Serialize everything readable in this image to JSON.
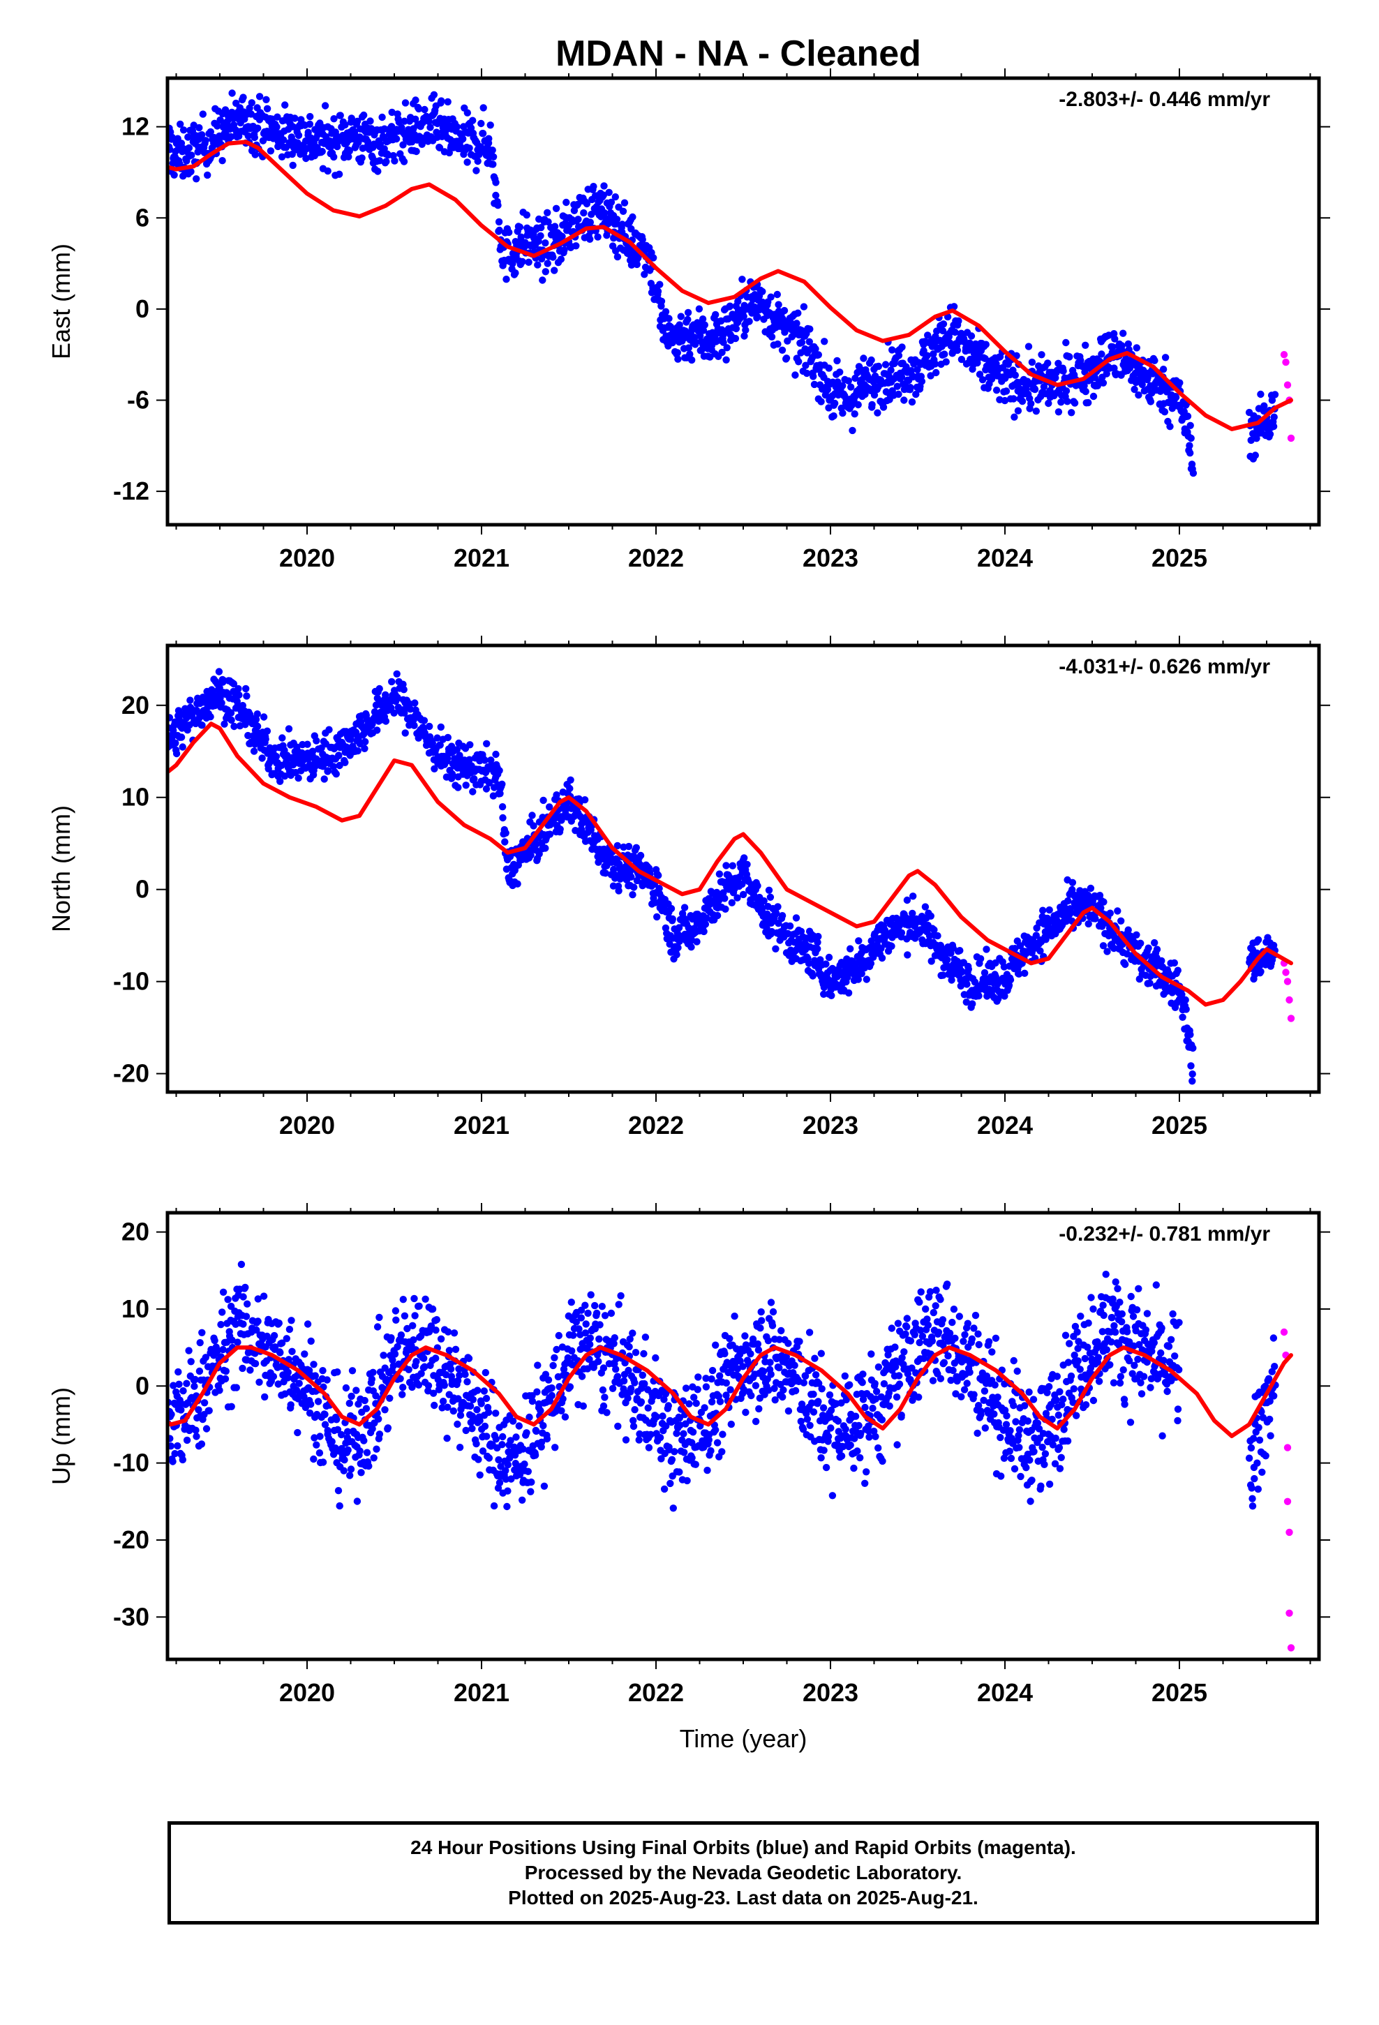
{
  "title": "MDAN  - NA - Cleaned",
  "chart_data": [
    {
      "type": "scatter",
      "ylabel": "East (mm)",
      "xlabel": "",
      "rate_label": "-2.803+/- 0.446 mm/yr",
      "xlim": [
        2019.2,
        2025.8
      ],
      "ylim": [
        -14.2,
        15.2
      ],
      "xticks": [
        "2020",
        "2021",
        "2022",
        "2023",
        "2024",
        "2025"
      ],
      "yticks": [
        "12",
        "6",
        "0",
        "-6",
        "-12"
      ],
      "ytick_values": [
        12,
        6,
        0,
        -6,
        -12
      ],
      "series": [
        {
          "name": "Final Orbits",
          "color": "#0000ff",
          "kind": "points",
          "x": [
            2019.2,
            2019.25,
            2019.35,
            2019.45,
            2019.55,
            2019.65,
            2019.75,
            2019.85,
            2019.95,
            2020.05,
            2020.15,
            2020.25,
            2020.35,
            2020.45,
            2020.55,
            2020.65,
            2020.75,
            2020.85,
            2020.95,
            2021.05,
            2021.12,
            2021.15,
            2021.25,
            2021.35,
            2021.45,
            2021.55,
            2021.65,
            2021.75,
            2021.85,
            2021.95,
            2022.05,
            2022.1,
            2022.2,
            2022.3,
            2022.4,
            2022.5,
            2022.6,
            2022.7,
            2022.8,
            2022.9,
            2023.0,
            2023.1,
            2023.2,
            2023.3,
            2023.4,
            2023.5,
            2023.6,
            2023.7,
            2023.8,
            2023.9,
            2024.0,
            2024.1,
            2024.2,
            2024.3,
            2024.4,
            2024.5,
            2024.6,
            2024.7,
            2024.8,
            2024.9,
            2025.0,
            2025.05,
            2025.08,
            2025.4,
            2025.5,
            2025.55
          ],
          "y": [
            11,
            10,
            10.5,
            11,
            12,
            12.5,
            12,
            11.5,
            11.5,
            11,
            11,
            11.5,
            11,
            11,
            11.5,
            12,
            12,
            11,
            11,
            11,
            4,
            3.5,
            4.5,
            4,
            4.5,
            6,
            6.5,
            6,
            4.5,
            4,
            -1.5,
            -2,
            -1.5,
            -2,
            -1.5,
            0,
            0.5,
            -1,
            -2,
            -3,
            -5.5,
            -6,
            -5,
            -4.5,
            -4,
            -4,
            -2.5,
            -1.5,
            -3,
            -4,
            -4.5,
            -5,
            -5,
            -5,
            -4.5,
            -4,
            -3,
            -3.5,
            -4.5,
            -5,
            -6,
            -8,
            -11,
            -8,
            -7.5,
            -6
          ]
        },
        {
          "name": "Rapid Orbits",
          "color": "#ff00ff",
          "kind": "points",
          "x": [
            2025.6,
            2025.61,
            2025.62,
            2025.63,
            2025.64
          ],
          "y": [
            -3,
            -3.5,
            -5,
            -6,
            -8.5
          ]
        },
        {
          "name": "Model",
          "color": "#ff0000",
          "kind": "line",
          "x": [
            2019.15,
            2019.25,
            2019.35,
            2019.45,
            2019.55,
            2019.65,
            2019.72,
            2019.85,
            2020.0,
            2020.15,
            2020.3,
            2020.45,
            2020.6,
            2020.7,
            2020.85,
            2021.0,
            2021.15,
            2021.3,
            2021.45,
            2021.6,
            2021.7,
            2021.85,
            2022.0,
            2022.15,
            2022.3,
            2022.45,
            2022.6,
            2022.7,
            2022.85,
            2023.0,
            2023.15,
            2023.3,
            2023.45,
            2023.6,
            2023.7,
            2023.85,
            2024.0,
            2024.15,
            2024.3,
            2024.45,
            2024.6,
            2024.7,
            2024.85,
            2025.0,
            2025.15,
            2025.3,
            2025.45,
            2025.55,
            2025.64
          ],
          "y": [
            9.5,
            9.2,
            9.4,
            10.2,
            10.9,
            11,
            10.6,
            9.2,
            7.6,
            6.5,
            6.1,
            6.8,
            7.9,
            8.2,
            7.2,
            5.5,
            4.1,
            3.5,
            4.3,
            5.3,
            5.4,
            4.4,
            2.7,
            1.2,
            0.4,
            0.8,
            2.0,
            2.5,
            1.8,
            0.1,
            -1.4,
            -2.1,
            -1.7,
            -0.5,
            -0.1,
            -1.1,
            -2.8,
            -4.3,
            -5,
            -4.6,
            -3.3,
            -2.9,
            -3.8,
            -5.5,
            -7,
            -7.9,
            -7.5,
            -6.5,
            -6
          ]
        }
      ]
    },
    {
      "type": "scatter",
      "ylabel": "North (mm)",
      "xlabel": "",
      "rate_label": "-4.031+/- 0.626 mm/yr",
      "xlim": [
        2019.2,
        2025.8
      ],
      "ylim": [
        -22,
        26.5
      ],
      "xticks": [
        "2020",
        "2021",
        "2022",
        "2023",
        "2024",
        "2025"
      ],
      "yticks": [
        "20",
        "10",
        "0",
        "-10",
        "-20"
      ],
      "ytick_values": [
        20,
        10,
        0,
        -10,
        -20
      ],
      "series": [
        {
          "name": "Final Orbits",
          "color": "#0000ff",
          "kind": "points",
          "x": [
            2019.2,
            2019.3,
            2019.4,
            2019.5,
            2019.6,
            2019.7,
            2019.8,
            2019.9,
            2020.0,
            2020.1,
            2020.2,
            2020.3,
            2020.4,
            2020.5,
            2020.6,
            2020.7,
            2020.8,
            2020.9,
            2021.0,
            2021.1,
            2021.15,
            2021.25,
            2021.35,
            2021.45,
            2021.5,
            2021.6,
            2021.7,
            2021.8,
            2021.9,
            2022.0,
            2022.1,
            2022.2,
            2022.3,
            2022.4,
            2022.5,
            2022.6,
            2022.7,
            2022.8,
            2022.9,
            2023.0,
            2023.1,
            2023.2,
            2023.3,
            2023.4,
            2023.5,
            2023.6,
            2023.7,
            2023.8,
            2023.9,
            2024.0,
            2024.1,
            2024.2,
            2024.3,
            2024.4,
            2024.5,
            2024.6,
            2024.7,
            2024.8,
            2024.9,
            2025.0,
            2025.05,
            2025.08,
            2025.4,
            2025.5,
            2025.55
          ],
          "y": [
            16,
            18,
            20,
            21.5,
            20,
            17,
            14.5,
            14,
            14,
            14.5,
            15.5,
            17,
            19,
            21,
            19,
            16,
            14,
            13.5,
            13,
            12.5,
            2,
            4,
            6,
            8.5,
            9.5,
            7,
            4,
            2.5,
            2,
            0.5,
            -5,
            -4.5,
            -2,
            0,
            1.5,
            -2,
            -4,
            -6,
            -7,
            -10,
            -9,
            -7.5,
            -5,
            -4,
            -3.5,
            -6,
            -8,
            -10,
            -10,
            -9.5,
            -7,
            -5,
            -3.5,
            -2,
            -2,
            -4,
            -6,
            -8,
            -9,
            -11,
            -15,
            -20,
            -8,
            -7,
            -7
          ]
        },
        {
          "name": "Rapid Orbits",
          "color": "#ff00ff",
          "kind": "points",
          "x": [
            2025.6,
            2025.61,
            2025.62,
            2025.63,
            2025.64
          ],
          "y": [
            -8,
            -9,
            -10,
            -12,
            -14
          ]
        },
        {
          "name": "Model",
          "color": "#ff0000",
          "kind": "line",
          "x": [
            2019.15,
            2019.25,
            2019.35,
            2019.45,
            2019.5,
            2019.6,
            2019.75,
            2019.9,
            2020.05,
            2020.2,
            2020.3,
            2020.4,
            2020.5,
            2020.6,
            2020.75,
            2020.9,
            2021.05,
            2021.15,
            2021.25,
            2021.35,
            2021.45,
            2021.5,
            2021.6,
            2021.75,
            2021.9,
            2022.05,
            2022.15,
            2022.25,
            2022.35,
            2022.45,
            2022.5,
            2022.6,
            2022.75,
            2022.9,
            2023.05,
            2023.15,
            2023.25,
            2023.35,
            2023.45,
            2023.5,
            2023.6,
            2023.75,
            2023.9,
            2024.05,
            2024.15,
            2024.25,
            2024.35,
            2024.45,
            2024.5,
            2024.6,
            2024.75,
            2024.9,
            2025.05,
            2025.15,
            2025.25,
            2025.35,
            2025.45,
            2025.5,
            2025.64
          ],
          "y": [
            12,
            13.5,
            16,
            18,
            17.5,
            14.5,
            11.5,
            10,
            9,
            7.5,
            8,
            11,
            14,
            13.5,
            9.5,
            7,
            5.5,
            4,
            4.5,
            7,
            9.5,
            10,
            8.5,
            4.5,
            2,
            0.5,
            -0.5,
            0,
            3,
            5.5,
            6,
            4,
            0,
            -1.5,
            -3,
            -4,
            -3.5,
            -1,
            1.5,
            2,
            0.5,
            -3,
            -5.5,
            -7,
            -8,
            -7.5,
            -5,
            -2.5,
            -2,
            -3.5,
            -7,
            -9.5,
            -11,
            -12.5,
            -12,
            -10,
            -7.5,
            -6.5,
            -8
          ]
        }
      ]
    },
    {
      "type": "scatter",
      "ylabel": "Up (mm)",
      "xlabel": "Time (year)",
      "rate_label": "-0.232+/- 0.781 mm/yr",
      "xlim": [
        2019.2,
        2025.8
      ],
      "ylim": [
        -35.5,
        22.5
      ],
      "xticks": [
        "2020",
        "2021",
        "2022",
        "2023",
        "2024",
        "2025"
      ],
      "yticks": [
        "20",
        "10",
        "0",
        "-10",
        "-20",
        "-30"
      ],
      "ytick_values": [
        20,
        10,
        0,
        -10,
        -20,
        -30
      ],
      "series": [
        {
          "name": "Final Orbits",
          "color": "#0000ff",
          "kind": "points",
          "x": [
            2019.2,
            2019.3,
            2019.4,
            2019.5,
            2019.6,
            2019.7,
            2019.8,
            2019.9,
            2020.0,
            2020.1,
            2020.2,
            2020.3,
            2020.4,
            2020.5,
            2020.6,
            2020.7,
            2020.8,
            2020.9,
            2021.0,
            2021.1,
            2021.2,
            2021.3,
            2021.4,
            2021.5,
            2021.6,
            2021.7,
            2021.8,
            2021.9,
            2022.0,
            2022.1,
            2022.2,
            2022.3,
            2022.4,
            2022.5,
            2022.6,
            2022.7,
            2022.8,
            2022.9,
            2023.0,
            2023.1,
            2023.2,
            2023.3,
            2023.4,
            2023.5,
            2023.6,
            2023.7,
            2023.8,
            2023.9,
            2024.0,
            2024.1,
            2024.2,
            2024.3,
            2024.4,
            2024.5,
            2024.6,
            2024.7,
            2024.8,
            2024.9,
            2025.0,
            2025.4,
            2025.45,
            2025.5,
            2025.55
          ],
          "y": [
            -6,
            -4,
            0,
            3,
            8,
            6,
            4,
            3,
            1,
            -4,
            -8,
            -6,
            -2,
            3,
            5,
            6,
            2,
            -1,
            -5,
            -8,
            -10,
            -6,
            -2,
            3,
            6,
            4,
            2,
            -1,
            -3,
            -8,
            -6,
            -4,
            0,
            3,
            5,
            3,
            1,
            -2,
            -6,
            -5,
            -4,
            -2,
            2,
            5,
            7,
            6,
            3,
            0,
            -4,
            -6,
            -8,
            -3,
            2,
            5,
            8,
            6,
            4,
            3,
            2,
            -12,
            -8,
            -2,
            2
          ]
        },
        {
          "name": "Rapid Orbits",
          "color": "#ff00ff",
          "kind": "points",
          "x": [
            2025.6,
            2025.61,
            2025.62,
            2025.62,
            2025.63,
            2025.63,
            2025.64
          ],
          "y": [
            7,
            4,
            -8,
            -15,
            -19,
            -29.5,
            -34
          ]
        },
        {
          "name": "Model",
          "color": "#ff0000",
          "kind": "line",
          "x": [
            2019.15,
            2019.22,
            2019.3,
            2019.4,
            2019.5,
            2019.6,
            2019.68,
            2019.8,
            2019.95,
            2020.1,
            2020.2,
            2020.3,
            2020.4,
            2020.5,
            2020.6,
            2020.68,
            2020.8,
            2020.95,
            2021.1,
            2021.2,
            2021.3,
            2021.4,
            2021.5,
            2021.6,
            2021.68,
            2021.8,
            2021.95,
            2022.1,
            2022.2,
            2022.3,
            2022.4,
            2022.5,
            2022.6,
            2022.68,
            2022.8,
            2022.95,
            2023.1,
            2023.2,
            2023.3,
            2023.4,
            2023.5,
            2023.6,
            2023.68,
            2023.8,
            2023.95,
            2024.1,
            2024.2,
            2024.3,
            2024.4,
            2024.5,
            2024.6,
            2024.68,
            2024.8,
            2024.95,
            2025.1,
            2025.2,
            2025.3,
            2025.4,
            2025.5,
            2025.6,
            2025.64
          ],
          "y": [
            -4,
            -5,
            -4.5,
            -1,
            3,
            5,
            5,
            4,
            2,
            -1,
            -4,
            -5,
            -3,
            1,
            4,
            5,
            4,
            2,
            -1,
            -4,
            -5,
            -3,
            1,
            4,
            5,
            4,
            2,
            -1,
            -4,
            -5,
            -3,
            1,
            4,
            5,
            4,
            2,
            -1,
            -4,
            -5.5,
            -3,
            1,
            4,
            5,
            4,
            2,
            -1,
            -4,
            -5.5,
            -3,
            1,
            4,
            5,
            4,
            2,
            -1,
            -4.5,
            -6.5,
            -5,
            -1,
            3,
            4
          ]
        }
      ]
    }
  ],
  "footer": {
    "line1": "24 Hour Positions Using Final Orbits (blue) and Rapid Orbits (magenta).",
    "line2": "Processed by the Nevada Geodetic Laboratory.",
    "line3": "Plotted on 2025-Aug-23. Last data on 2025-Aug-21."
  }
}
